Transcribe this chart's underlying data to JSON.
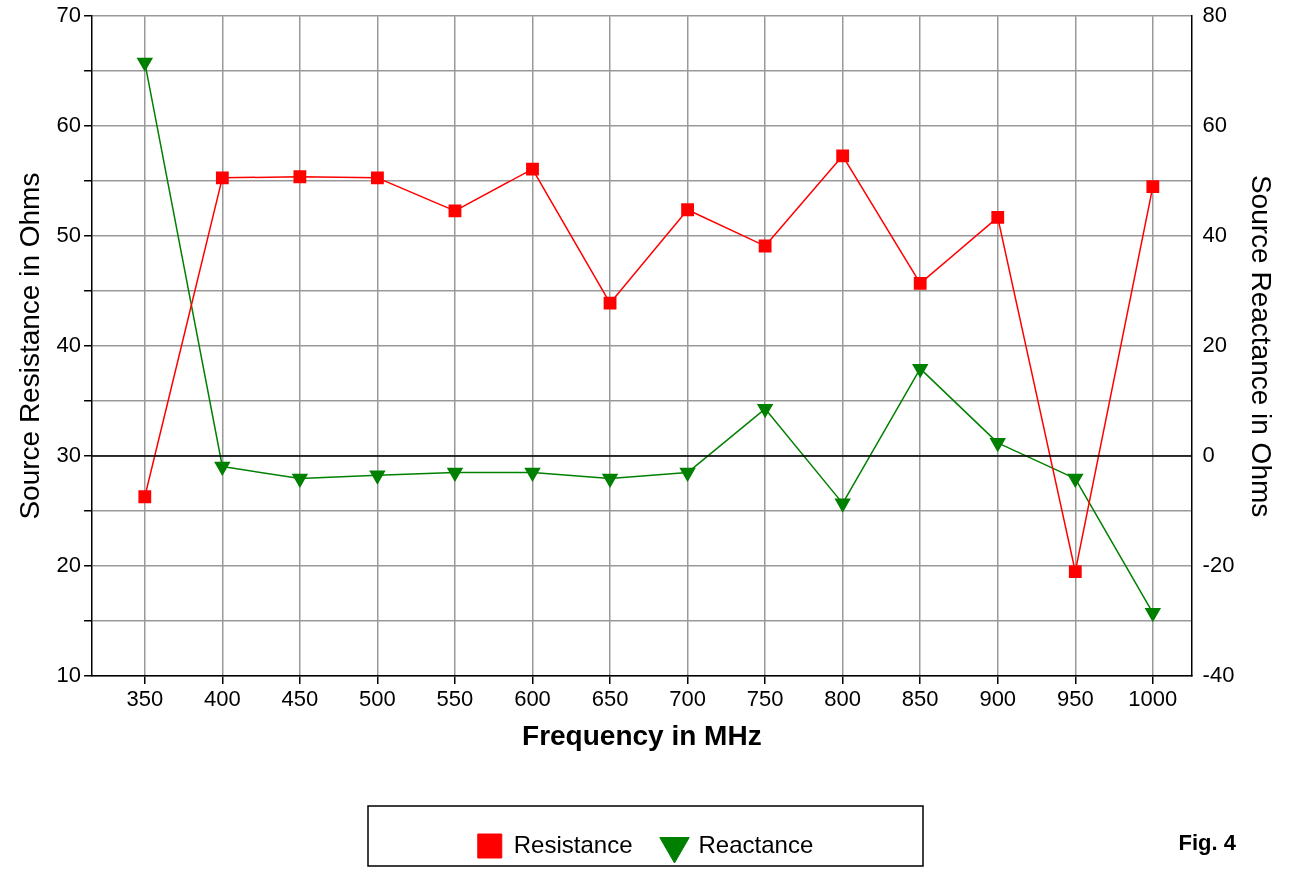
{
  "chart_data": {
    "type": "line",
    "xlabel": "Frequency in MHz",
    "ylabel": "Source Resistance in Ohms",
    "y2label": "Source Reactance in Ohms",
    "x": [
      350,
      400,
      450,
      500,
      550,
      600,
      650,
      700,
      750,
      800,
      850,
      900,
      950,
      1000
    ],
    "series": [
      {
        "name": "Resistance",
        "color": "#ff0000",
        "marker": "square",
        "values": [
          26.3,
          55.3,
          55.4,
          55.3,
          52.3,
          56.1,
          43.9,
          52.4,
          49.1,
          57.3,
          45.7,
          51.7,
          19.5,
          54.5
        ]
      },
      {
        "name": "Reactance",
        "color": "#008000",
        "marker": "triangle",
        "axis": "y2",
        "values": [
          71.6,
          -1.9,
          -4.1,
          -3.5,
          -3.0,
          -3.0,
          -4.1,
          -3.0,
          8.6,
          -8.6,
          15.9,
          2.4,
          -4.1,
          -28.5
        ]
      }
    ],
    "xlim": [
      316,
      1025
    ],
    "xticks": [
      350,
      400,
      450,
      500,
      550,
      600,
      650,
      700,
      750,
      800,
      850,
      900,
      950,
      1000
    ],
    "ylim": [
      10,
      70
    ],
    "yticks": [
      10,
      {
        "value": 15,
        "label": null
      },
      20,
      {
        "value": 25,
        "label": null
      },
      30,
      {
        "value": 35,
        "label": null
      },
      40,
      {
        "value": 45,
        "label": null
      },
      50,
      {
        "value": 55,
        "label": null
      },
      60,
      {
        "value": 65,
        "label": null
      },
      70
    ],
    "y2lim": [
      -40,
      80
    ],
    "y2ticks": [
      -40,
      -20,
      0,
      20,
      40,
      60,
      80
    ],
    "ref_lines": [
      {
        "axis": "y2",
        "value": 0,
        "color": "#000000"
      }
    ],
    "annotations": [
      "Fig. 4"
    ],
    "grid": true,
    "legend": "bottom",
    "line_style": "solid"
  }
}
